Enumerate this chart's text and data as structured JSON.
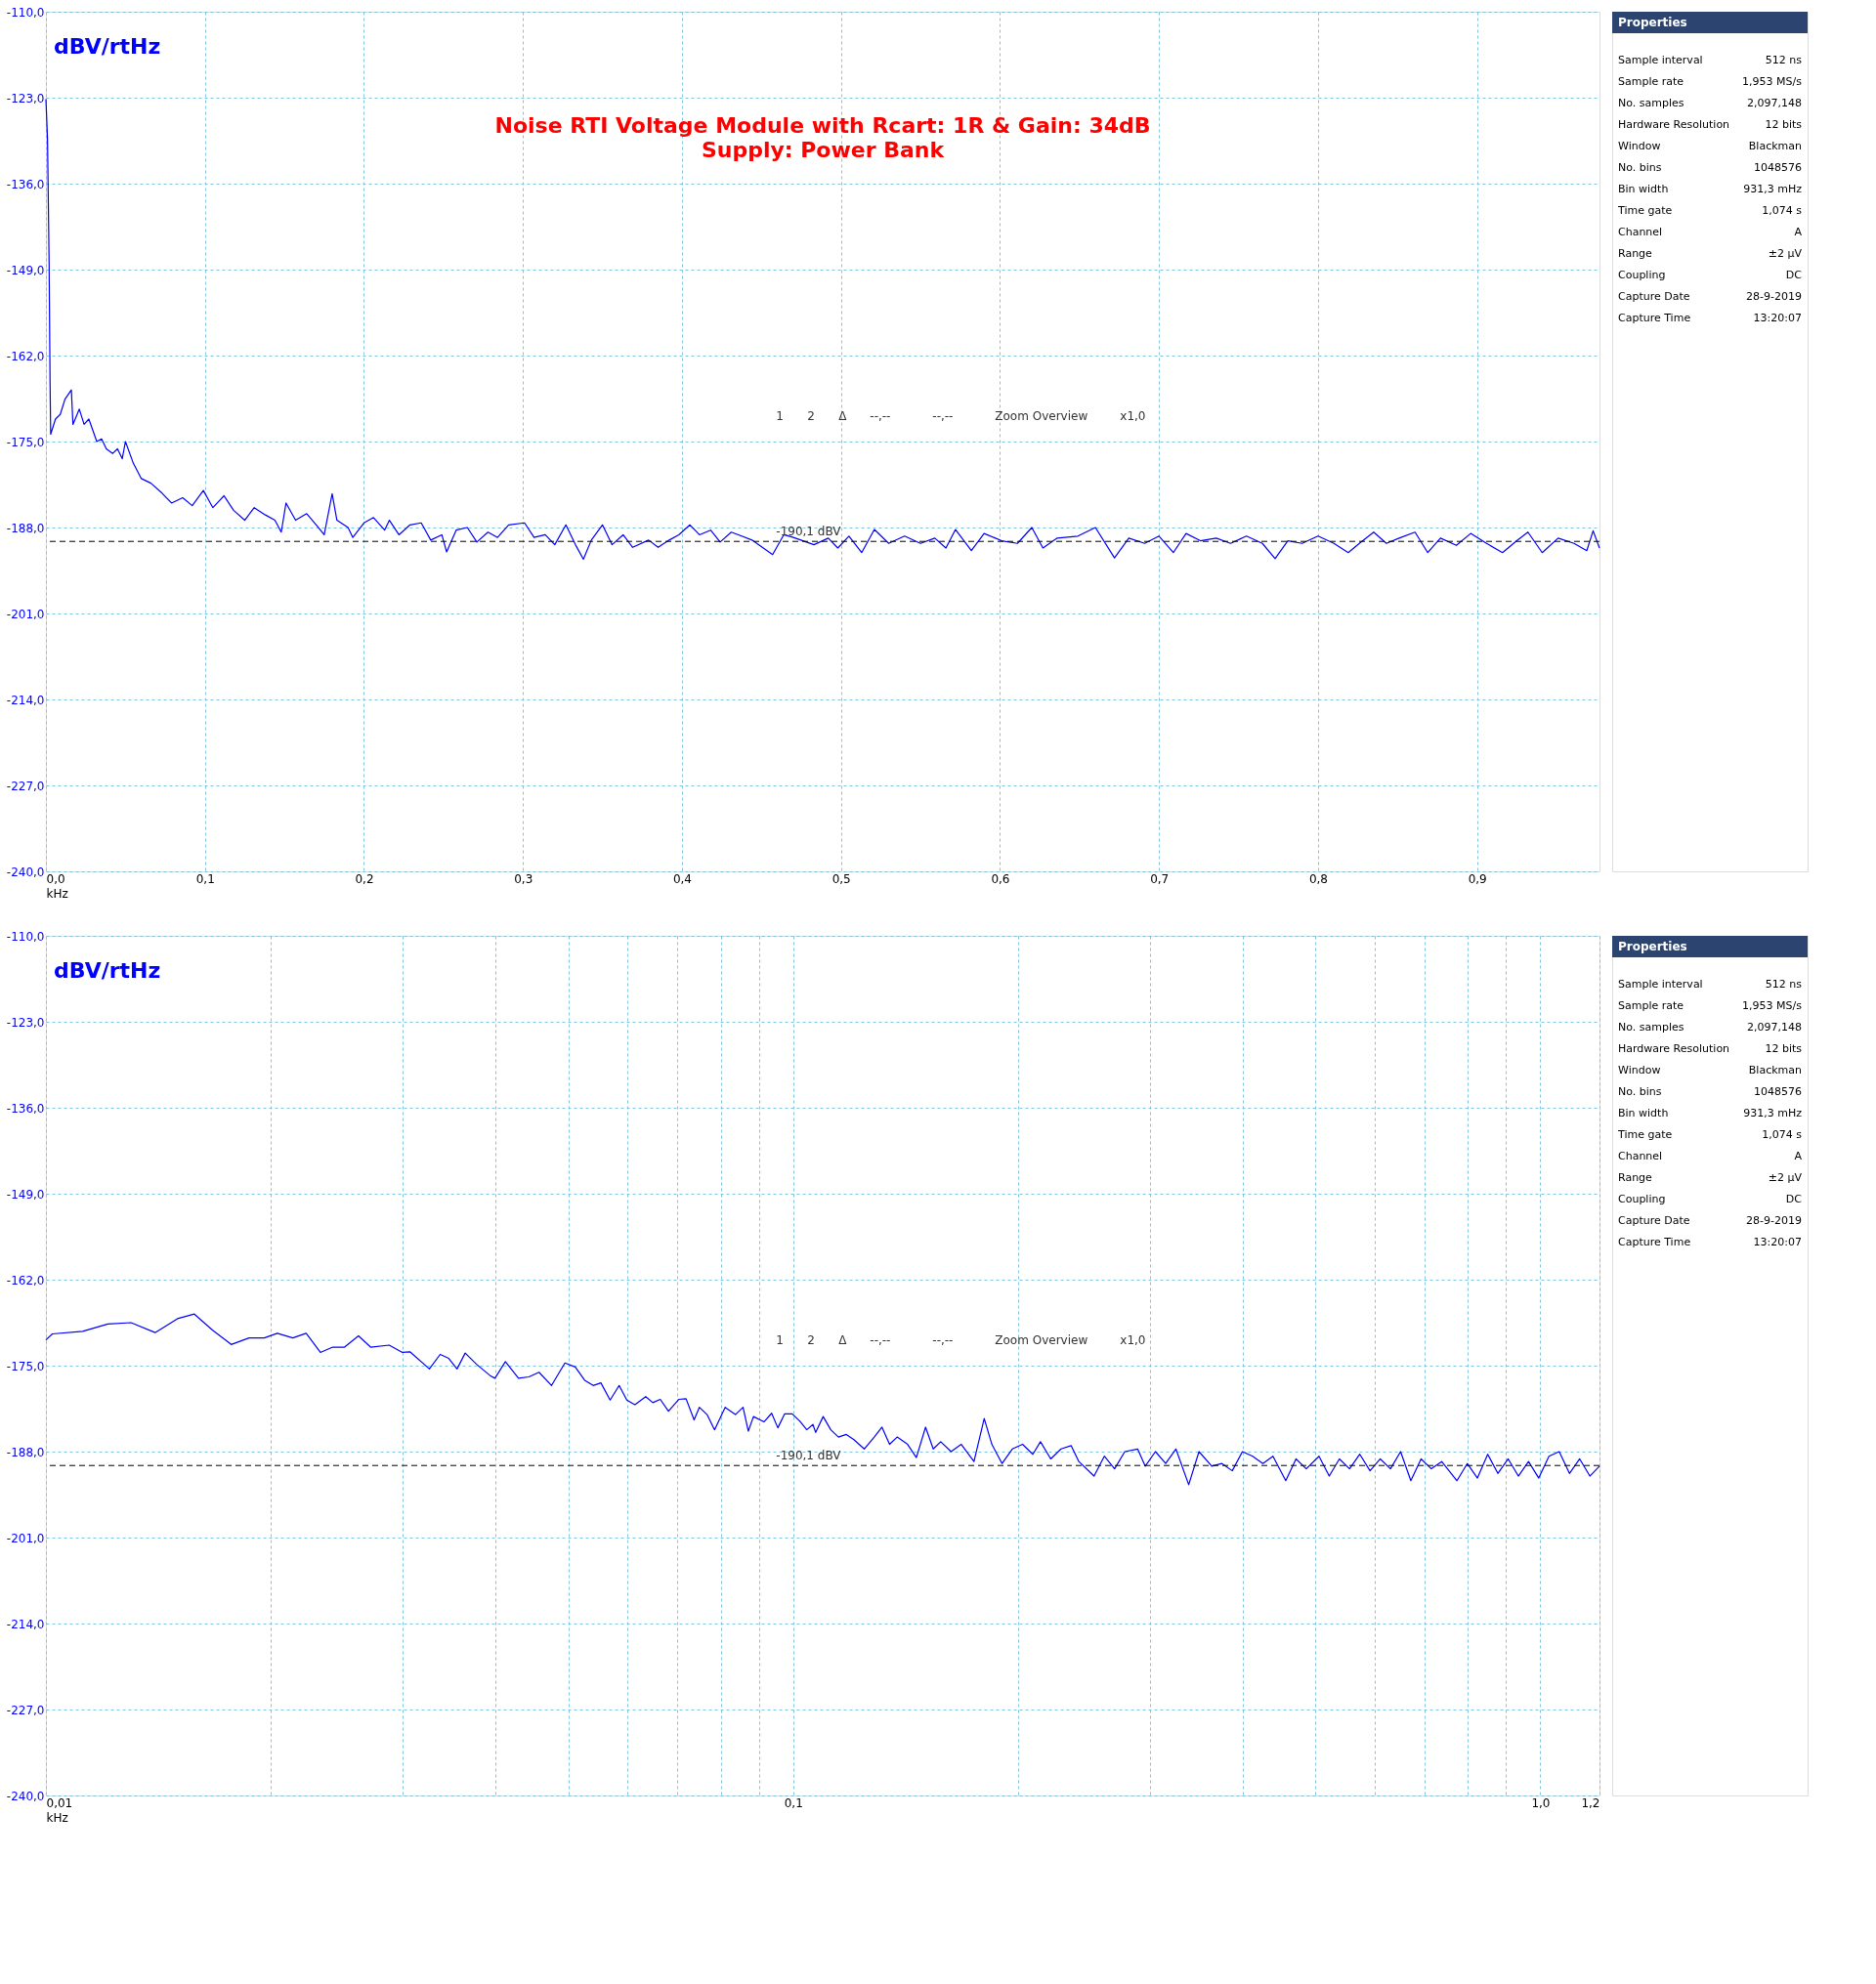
{
  "chart_data": [
    {
      "type": "line",
      "title": "Noise RTI Voltage Module with Rcart: 1R & Gain: 34dB",
      "subtitle": "Supply: Power Bank",
      "ylabel": "dBV/rtHz",
      "xlabel": "kHz",
      "x": [
        0,
        0.001,
        0.002,
        0.0026,
        0.003,
        0.006,
        0.009,
        0.012,
        0.016,
        0.017,
        0.021,
        0.024,
        0.027,
        0.032,
        0.035,
        0.038,
        0.042,
        0.045,
        0.048,
        0.05,
        0.055,
        0.06,
        0.066,
        0.073,
        0.079,
        0.086,
        0.092,
        0.099,
        0.105,
        0.112,
        0.118,
        0.125,
        0.131,
        0.138,
        0.144,
        0.148,
        0.151,
        0.157,
        0.164,
        0.17,
        0.175,
        0.18,
        0.183,
        0.19,
        0.193,
        0.2,
        0.206,
        0.213,
        0.216,
        0.222,
        0.229,
        0.236,
        0.242,
        0.249,
        0.252,
        0.258,
        0.265,
        0.271,
        0.278,
        0.284,
        0.291,
        0.301,
        0.307,
        0.314,
        0.32,
        0.327,
        0.333,
        0.338,
        0.343,
        0.35,
        0.356,
        0.363,
        0.369,
        0.379,
        0.385,
        0.392,
        0.398,
        0.405,
        0.411,
        0.418,
        0.424,
        0.431,
        0.444,
        0.457,
        0.464,
        0.47,
        0.483,
        0.492,
        0.498,
        0.505,
        0.513,
        0.521,
        0.53,
        0.54,
        0.55,
        0.559,
        0.566,
        0.572,
        0.582,
        0.59,
        0.601,
        0.611,
        0.62,
        0.627,
        0.636,
        0.649,
        0.66,
        0.672,
        0.681,
        0.691,
        0.7,
        0.709,
        0.717,
        0.726,
        0.736,
        0.745,
        0.755,
        0.765,
        0.773,
        0.781,
        0.79,
        0.8,
        0.81,
        0.819,
        0.826,
        0.835,
        0.843,
        0.851,
        0.861,
        0.869,
        0.877,
        0.887,
        0.896,
        0.906,
        0.916,
        0.925,
        0.932,
        0.941,
        0.951,
        0.961,
        0.969,
        0.973,
        0.977
      ],
      "series": [
        {
          "color": "#0000ff",
          "values": [
            -123.2,
            -129.2,
            -147.8,
            -166.0,
            -173.9,
            -171.6,
            -170.9,
            -168.6,
            -167.2,
            -172.4,
            -170.1,
            -172.4,
            -171.6,
            -175.0,
            -174.6,
            -176.1,
            -176.8,
            -176.1,
            -177.6,
            -175.0,
            -178.3,
            -180.6,
            -181.3,
            -182.8,
            -184.3,
            -183.5,
            -184.7,
            -182.4,
            -185.0,
            -183.2,
            -185.4,
            -186.9,
            -185.0,
            -186.1,
            -186.9,
            -188.7,
            -184.3,
            -186.9,
            -185.9,
            -187.6,
            -189.1,
            -182.9,
            -186.9,
            -188.0,
            -189.5,
            -187.3,
            -186.5,
            -188.4,
            -186.9,
            -189.1,
            -187.6,
            -187.3,
            -189.9,
            -189.1,
            -191.7,
            -188.4,
            -188.0,
            -190.2,
            -188.7,
            -189.5,
            -187.6,
            -187.3,
            -189.5,
            -189.1,
            -190.6,
            -187.6,
            -190.6,
            -192.8,
            -189.9,
            -187.6,
            -190.6,
            -189.1,
            -191.0,
            -189.9,
            -191.0,
            -189.9,
            -189.1,
            -187.6,
            -189.1,
            -188.4,
            -190.2,
            -188.7,
            -189.9,
            -192.1,
            -189.1,
            -189.5,
            -190.6,
            -189.6,
            -191.1,
            -189.3,
            -191.8,
            -188.3,
            -190.4,
            -189.3,
            -190.4,
            -189.6,
            -191.1,
            -188.3,
            -191.5,
            -188.9,
            -190.0,
            -190.4,
            -188.0,
            -191.1,
            -189.6,
            -189.3,
            -188.0,
            -192.6,
            -189.6,
            -190.4,
            -189.3,
            -191.8,
            -188.9,
            -190.0,
            -189.6,
            -190.4,
            -189.3,
            -190.4,
            -192.7,
            -190.0,
            -190.4,
            -189.3,
            -190.4,
            -191.8,
            -190.4,
            -188.7,
            -190.4,
            -189.6,
            -188.7,
            -191.8,
            -189.6,
            -190.7,
            -188.9,
            -190.4,
            -191.8,
            -190.0,
            -188.7,
            -191.8,
            -189.6,
            -190.4,
            -191.5,
            -188.5,
            -191.1
          ]
        }
      ],
      "xlim": [
        0,
        0.977
      ],
      "ylim": [
        -240,
        -110
      ],
      "xticks": [
        {
          "value": 0,
          "label": "0,0"
        },
        {
          "value": 0.1,
          "label": "0,1"
        },
        {
          "value": 0.2,
          "label": "0,2"
        },
        {
          "value": 0.3,
          "label": "0,3"
        },
        {
          "value": 0.4,
          "label": "0,4"
        },
        {
          "value": 0.5,
          "label": "0,5"
        },
        {
          "value": 0.6,
          "label": "0,6"
        },
        {
          "value": 0.7,
          "label": "0,7"
        },
        {
          "value": 0.8,
          "label": "0,8"
        },
        {
          "value": 0.9,
          "label": "0,9"
        }
      ],
      "yticks": [
        {
          "value": -110,
          "label": "-110,0"
        },
        {
          "value": -123,
          "label": "-123,0"
        },
        {
          "value": -136,
          "label": "-136,0"
        },
        {
          "value": -149,
          "label": "-149,0"
        },
        {
          "value": -162,
          "label": "-162,0"
        },
        {
          "value": -175,
          "label": "-175,0"
        },
        {
          "value": -188,
          "label": "-188,0"
        },
        {
          "value": -201,
          "label": "-201,0"
        },
        {
          "value": -214,
          "label": "-214,0"
        },
        {
          "value": -227,
          "label": "-227,0"
        },
        {
          "value": -240,
          "label": "-240,0"
        }
      ],
      "grid": true,
      "ref_lines": [
        {
          "axis": "y",
          "value": -190.1,
          "label": "-190,1 dBV",
          "color": "#000000",
          "line_style": "dashed"
        }
      ],
      "annotations": [
        "1",
        "2",
        "Δ",
        "--,--",
        "--,--",
        "Zoom Overview",
        "x1,0"
      ]
    },
    {
      "type": "other",
      "title": "Properties",
      "annotations": [
        "Sample interval",
        "512 ns",
        "Sample rate",
        "1,953 MS/s",
        "No. samples",
        "2,097,148",
        "Hardware Resolution",
        "12 bits",
        "Window",
        "Blackman",
        "No. bins",
        "1048576",
        "Bin width",
        "931,3 mHz",
        "Time gate",
        "1,074 s",
        "Channel",
        "A",
        "Range",
        "±2 µV",
        "Coupling",
        "DC",
        "Capture Date",
        "28-9-2019",
        "Capture Time",
        "13:20:07"
      ]
    },
    {
      "type": "line",
      "ylabel": "dBV/rtHz",
      "xlabel": "kHz",
      "log": "x",
      "x": [
        0.01,
        0.0102,
        0.0112,
        0.0121,
        0.013,
        0.014,
        0.015,
        0.0158,
        0.0167,
        0.0177,
        0.0187,
        0.0196,
        0.0204,
        0.0214,
        0.0223,
        0.0233,
        0.0242,
        0.0251,
        0.0262,
        0.0272,
        0.0288,
        0.03,
        0.0307,
        0.0326,
        0.0337,
        0.0346,
        0.0355,
        0.0364,
        0.0377,
        0.0393,
        0.0399,
        0.0412,
        0.0429,
        0.0443,
        0.0457,
        0.0475,
        0.0495,
        0.0511,
        0.0526,
        0.054,
        0.0553,
        0.0569,
        0.0585,
        0.0599,
        0.0614,
        0.0635,
        0.0649,
        0.0664,
        0.0681,
        0.0703,
        0.0719,
        0.0737,
        0.0749,
        0.0767,
        0.0785,
        0.0811,
        0.0837,
        0.0857,
        0.0871,
        0.0885,
        0.0914,
        0.0936,
        0.0954,
        0.0974,
        0.0997,
        0.1021,
        0.1043,
        0.1063,
        0.1072,
        0.1097,
        0.1123,
        0.115,
        0.1178,
        0.1206,
        0.1245,
        0.1284,
        0.1315,
        0.1346,
        0.1378,
        0.1423,
        0.1462,
        0.1504,
        0.154,
        0.1576,
        0.1627,
        0.1679,
        0.1746,
        0.1802,
        0.1845,
        0.1904,
        0.1965,
        0.2028,
        0.2093,
        0.2143,
        0.2212,
        0.2283,
        0.2356,
        0.2412,
        0.2528,
        0.2609,
        0.2693,
        0.2779,
        0.2891,
        0.296,
        0.3054,
        0.3152,
        0.3253,
        0.3384,
        0.3493,
        0.3633,
        0.3749,
        0.387,
        0.3993,
        0.4121,
        0.4253,
        0.4387,
        0.4564,
        0.471,
        0.4861,
        0.5056,
        0.5218,
        0.5384,
        0.5555,
        0.5733,
        0.5917,
        0.6106,
        0.6302,
        0.6501,
        0.671,
        0.6925,
        0.7147,
        0.7379,
        0.7735,
        0.7984,
        0.8238,
        0.8503,
        0.8774,
        0.9056,
        0.9346,
        0.9643,
        0.9952,
        1.027,
        1.06,
        1.094,
        1.129,
        1.165,
        1.2
      ],
      "series": [
        {
          "color": "#0000ff",
          "values": [
            -171.1,
            -170.2,
            -169.8,
            -168.7,
            -168.5,
            -170.0,
            -167.9,
            -167.2,
            -169.6,
            -171.8,
            -170.8,
            -170.8,
            -170.1,
            -170.8,
            -170.1,
            -173.0,
            -172.2,
            -172.2,
            -170.5,
            -172.2,
            -171.9,
            -173.0,
            -172.9,
            -175.5,
            -173.3,
            -173.9,
            -175.5,
            -173.1,
            -174.8,
            -176.5,
            -176.9,
            -174.4,
            -176.9,
            -176.7,
            -176.0,
            -178.0,
            -174.6,
            -175.2,
            -177.2,
            -178.0,
            -177.6,
            -180.2,
            -178.0,
            -180.2,
            -180.9,
            -179.7,
            -180.6,
            -180.1,
            -181.9,
            -180.1,
            -180.0,
            -183.2,
            -181.3,
            -182.4,
            -184.7,
            -181.3,
            -182.4,
            -181.3,
            -184.9,
            -182.7,
            -183.5,
            -182.2,
            -184.4,
            -182.3,
            -182.3,
            -183.4,
            -184.7,
            -183.9,
            -185.1,
            -182.7,
            -184.7,
            -185.8,
            -185.4,
            -186.2,
            -187.6,
            -185.8,
            -184.3,
            -186.9,
            -185.8,
            -186.9,
            -188.9,
            -184.3,
            -187.6,
            -186.5,
            -188.0,
            -186.9,
            -189.5,
            -183.0,
            -186.9,
            -189.8,
            -187.6,
            -186.9,
            -188.4,
            -186.5,
            -189.1,
            -187.6,
            -187.1,
            -189.5,
            -191.7,
            -188.7,
            -190.6,
            -188.0,
            -187.6,
            -190.2,
            -188.0,
            -189.8,
            -187.6,
            -193.0,
            -188.0,
            -190.2,
            -189.8,
            -190.9,
            -188.0,
            -188.7,
            -189.8,
            -188.7,
            -192.4,
            -189.1,
            -190.6,
            -188.7,
            -191.7,
            -189.1,
            -190.6,
            -188.4,
            -190.9,
            -189.1,
            -190.6,
            -188.0,
            -192.4,
            -189.1,
            -190.6,
            -189.5,
            -192.4,
            -189.8,
            -192.0,
            -188.4,
            -191.3,
            -189.1,
            -191.7,
            -189.5,
            -192.0,
            -188.7,
            -188.0,
            -191.3,
            -189.1,
            -191.7,
            -190.2
          ]
        }
      ],
      "xlim": [
        0.01,
        1.2
      ],
      "ylim": [
        -240,
        -110
      ],
      "xticks": [
        {
          "value": 0.01,
          "label": "0,01"
        },
        {
          "value": 0.02,
          "label": null
        },
        {
          "value": 0.03,
          "label": null
        },
        {
          "value": 0.04,
          "label": null
        },
        {
          "value": 0.05,
          "label": null
        },
        {
          "value": 0.06,
          "label": null
        },
        {
          "value": 0.07,
          "label": null
        },
        {
          "value": 0.08,
          "label": null
        },
        {
          "value": 0.09,
          "label": null
        },
        {
          "value": 0.1,
          "label": "0,1"
        },
        {
          "value": 0.2,
          "label": null
        },
        {
          "value": 0.3,
          "label": null
        },
        {
          "value": 0.4,
          "label": null
        },
        {
          "value": 0.5,
          "label": null
        },
        {
          "value": 0.6,
          "label": null
        },
        {
          "value": 0.7,
          "label": null
        },
        {
          "value": 0.8,
          "label": null
        },
        {
          "value": 0.9,
          "label": null
        },
        {
          "value": 1.0,
          "label": "1,0"
        },
        {
          "value": 1.2,
          "label": "1,2"
        }
      ],
      "yticks": [
        {
          "value": -110,
          "label": "-110,0"
        },
        {
          "value": -123,
          "label": "-123,0"
        },
        {
          "value": -136,
          "label": "-136,0"
        },
        {
          "value": -149,
          "label": "-149,0"
        },
        {
          "value": -162,
          "label": "-162,0"
        },
        {
          "value": -175,
          "label": "-175,0"
        },
        {
          "value": -188,
          "label": "-188,0"
        },
        {
          "value": -201,
          "label": "-201,0"
        },
        {
          "value": -214,
          "label": "-214,0"
        },
        {
          "value": -227,
          "label": "-227,0"
        },
        {
          "value": -240,
          "label": "-240,0"
        }
      ],
      "grid": true,
      "ref_lines": [
        {
          "axis": "y",
          "value": -190.1,
          "label": "-190,1 dBV",
          "color": "#000000",
          "line_style": "dashed"
        }
      ],
      "annotations": [
        "1",
        "2",
        "Δ",
        "--,--",
        "--,--",
        "Zoom Overview",
        "x1,0"
      ]
    },
    {
      "type": "other",
      "title": "Properties",
      "annotations": [
        "Sample interval",
        "512 ns",
        "Sample rate",
        "1,953 MS/s",
        "No. samples",
        "2,097,148",
        "Hardware Resolution",
        "12 bits",
        "Window",
        "Blackman",
        "No. bins",
        "1048576",
        "Bin width",
        "931,3 mHz",
        "Time gate",
        "1,074 s",
        "Channel",
        "A",
        "Range",
        "±2 µV",
        "Coupling",
        "DC",
        "Capture Date",
        "28-9-2019",
        "Capture Time",
        "13:20:07"
      ]
    }
  ]
}
